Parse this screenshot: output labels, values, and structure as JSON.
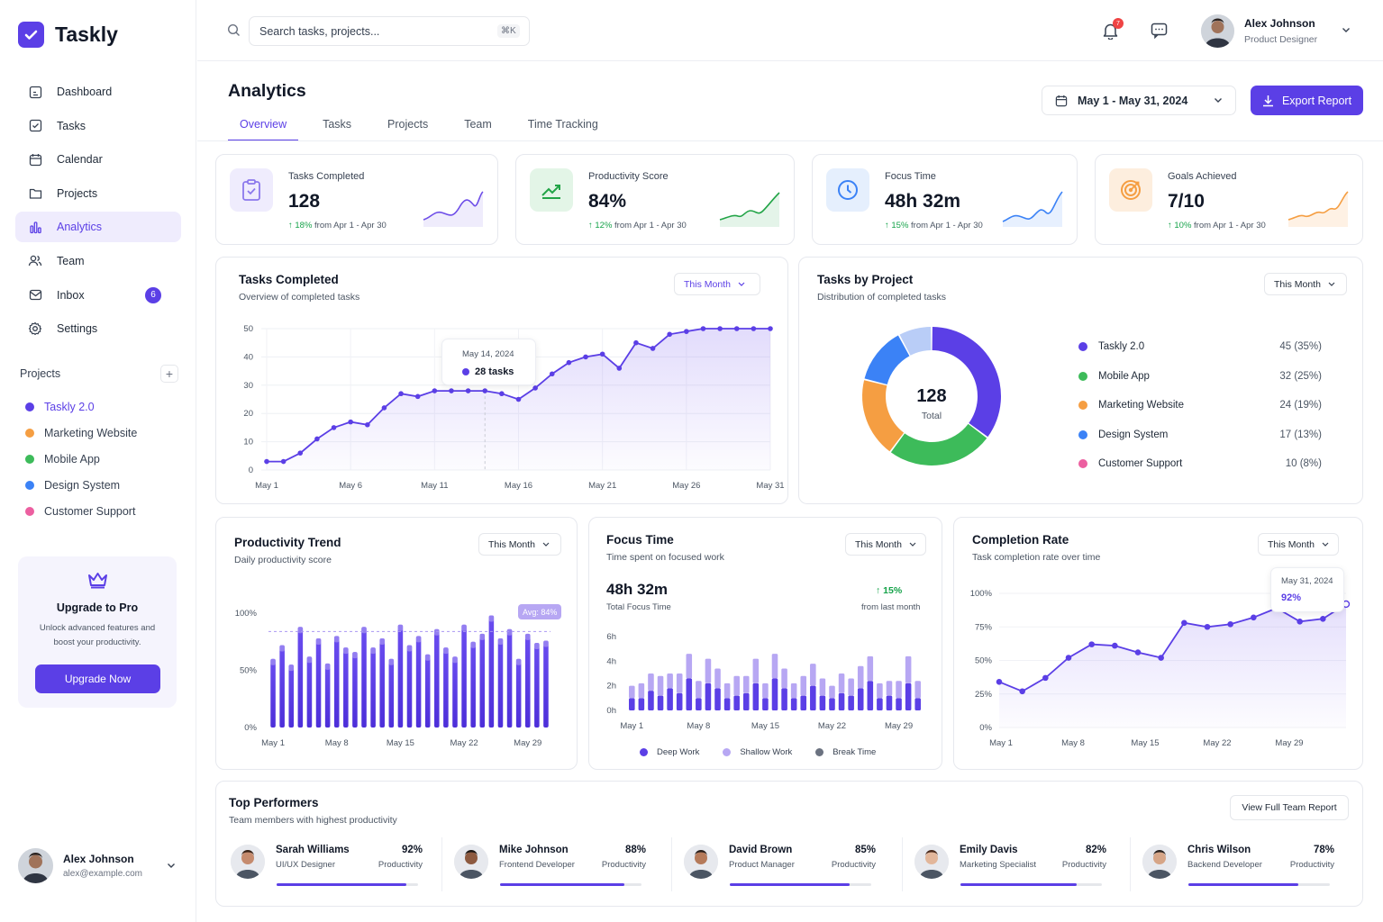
{
  "app": {
    "name": "Taskly"
  },
  "sidebar": {
    "nav": [
      {
        "label": "Dashboard",
        "icon": "dashboard-icon"
      },
      {
        "label": "Tasks",
        "icon": "checkbox-icon"
      },
      {
        "label": "Calendar",
        "icon": "calendar-icon"
      },
      {
        "label": "Projects",
        "icon": "folder-icon"
      },
      {
        "label": "Analytics",
        "icon": "bar-chart-icon",
        "active": true
      },
      {
        "label": "Team",
        "icon": "users-icon"
      },
      {
        "label": "Inbox",
        "icon": "inbox-icon",
        "badge": "6"
      },
      {
        "label": "Settings",
        "icon": "gear-icon"
      }
    ],
    "projects_heading": "Projects",
    "add_label": "+",
    "projects": [
      {
        "label": "Taskly 2.0",
        "color": "#5b3fe6",
        "active": true
      },
      {
        "label": "Marketing Website",
        "color": "#f59e42"
      },
      {
        "label": "Mobile App",
        "color": "#3dbb5a"
      },
      {
        "label": "Design System",
        "color": "#3b82f6"
      },
      {
        "label": "Customer Support",
        "color": "#ec5fa0"
      }
    ],
    "upgrade": {
      "title": "Upgrade to Pro",
      "text": "Unlock advanced features and boost your productivity.",
      "button": "Upgrade Now"
    },
    "user": {
      "name": "Alex Johnson",
      "email": "alex@example.com"
    }
  },
  "topbar": {
    "search_placeholder": "Search tasks, projects...",
    "shortcut": "⌘K",
    "notifications": "7",
    "user": {
      "name": "Alex Johnson",
      "role": "Product Designer"
    }
  },
  "header": {
    "title": "Analytics",
    "tabs": [
      "Overview",
      "Tasks",
      "Projects",
      "Team",
      "Time Tracking"
    ],
    "active_tab": "Overview",
    "date_range": "May 1 - May 31, 2024",
    "export_label": "Export Report"
  },
  "colors": {
    "accent": "#5b3fe6",
    "positive": "#16a34a",
    "orange": "#f59e42",
    "green": "#3dbb5a",
    "blue": "#3b82f6",
    "pink": "#ec5fa0"
  },
  "kpis": [
    {
      "label": "Tasks Completed",
      "value": "128",
      "delta": "18%",
      "delta_text": "from Apr 1 - Apr 30",
      "icon": "clipboard-check-icon",
      "color": "#8b78ec"
    },
    {
      "label": "Productivity Score",
      "value": "84%",
      "delta": "12%",
      "delta_text": "from Apr 1 - Apr 30",
      "icon": "trend-up-icon",
      "color": "#22a447"
    },
    {
      "label": "Focus Time",
      "value": "48h 32m",
      "delta": "15%",
      "delta_text": "from Apr 1 - Apr 30",
      "icon": "clock-icon",
      "color": "#3b82f6"
    },
    {
      "label": "Goals Achieved",
      "value": "7/10",
      "delta": "10%",
      "delta_text": "from Apr 1 - Apr 30",
      "icon": "target-icon",
      "color": "#f59e42"
    }
  ],
  "tasks_chart": {
    "title": "Tasks Completed",
    "subtitle": "Overview of completed tasks",
    "range": "This Month",
    "tooltip": {
      "date": "May 14, 2024",
      "value": "28 tasks"
    }
  },
  "projects_chart": {
    "title": "Tasks by Project",
    "subtitle": "Distribution of completed tasks",
    "range": "This Month",
    "center_value": "128",
    "center_label": "Total"
  },
  "productivity_chart": {
    "title": "Productivity Trend",
    "subtitle": "Daily productivity score",
    "range": "This Month",
    "avg_label": "Avg: 84%"
  },
  "focus_chart": {
    "title": "Focus Time",
    "subtitle": "Time spent on focused work",
    "range": "This Month",
    "total": "48h 32m",
    "total_label": "Total Focus Time",
    "delta": "15%",
    "delta_label": "from last month"
  },
  "completion_chart": {
    "title": "Completion Rate",
    "subtitle": "Task completion rate over time",
    "range": "This Month",
    "tooltip": {
      "date": "May 31, 2024",
      "value": "92%"
    }
  },
  "performers": {
    "title": "Top Performers",
    "subtitle": "Team members with highest productivity",
    "button": "View Full Team Report",
    "metric_label": "Productivity",
    "items": [
      {
        "name": "Sarah Williams",
        "role": "UI/UX Designer",
        "pct": "92%",
        "value": 0.92
      },
      {
        "name": "Mike Johnson",
        "role": "Frontend Developer",
        "pct": "88%",
        "value": 0.88
      },
      {
        "name": "David Brown",
        "role": "Product Manager",
        "pct": "85%",
        "value": 0.85
      },
      {
        "name": "Emily Davis",
        "role": "Marketing Specialist",
        "pct": "82%",
        "value": 0.82
      },
      {
        "name": "Chris Wilson",
        "role": "Backend Developer",
        "pct": "78%",
        "value": 0.78
      }
    ]
  },
  "chart_data": [
    {
      "type": "line",
      "title": "Tasks Completed",
      "x": [
        "May 1",
        "May 2",
        "May 3",
        "May 4",
        "May 5",
        "May 6",
        "May 7",
        "May 8",
        "May 9",
        "May 10",
        "May 11",
        "May 12",
        "May 13",
        "May 14",
        "May 15",
        "May 16",
        "May 17",
        "May 18",
        "May 19",
        "May 20",
        "May 21",
        "May 22",
        "May 23",
        "May 24",
        "May 25",
        "May 26",
        "May 27",
        "May 28",
        "May 29",
        "May 30",
        "May 31"
      ],
      "x_ticks": [
        "May 1",
        "May 6",
        "May 11",
        "May 16",
        "May 21",
        "May 26",
        "May 31"
      ],
      "y_ticks": [
        0,
        10,
        20,
        30,
        40,
        50
      ],
      "ylim": [
        0,
        50
      ],
      "values": [
        3,
        3,
        6,
        11,
        15,
        17,
        16,
        22,
        27,
        26,
        28,
        28,
        28,
        28,
        27,
        25,
        29,
        34,
        38,
        40,
        41,
        36,
        45,
        43,
        48,
        49,
        50,
        50,
        50,
        50,
        50
      ],
      "grid": true
    },
    {
      "type": "pie",
      "title": "Tasks by Project",
      "categories": [
        "Taskly 2.0",
        "Mobile App",
        "Marketing Website",
        "Design System",
        "Customer Support"
      ],
      "values": [
        45,
        32,
        24,
        17,
        10
      ],
      "labels": [
        "45 (35%)",
        "32 (25%)",
        "24 (19%)",
        "17 (13%)",
        "10 (8%)"
      ],
      "total": 128
    },
    {
      "type": "bar",
      "title": "Productivity Trend",
      "x_ticks": [
        "May 1",
        "May 8",
        "May 15",
        "May 22",
        "May 29"
      ],
      "y_ticks": [
        "0%",
        "50%",
        "100%"
      ],
      "ylim": [
        0,
        100
      ],
      "values": [
        60,
        72,
        55,
        88,
        62,
        78,
        56,
        80,
        70,
        66,
        88,
        70,
        78,
        60,
        90,
        72,
        80,
        64,
        86,
        70,
        62,
        90,
        75,
        82,
        98,
        78,
        86,
        60,
        82,
        74,
        76
      ],
      "average": 84
    },
    {
      "type": "bar",
      "title": "Focus Time",
      "x_ticks": [
        "May 1",
        "May 8",
        "May 15",
        "May 22",
        "May 29"
      ],
      "y_ticks": [
        "0h",
        "2h",
        "4h",
        "6h"
      ],
      "ylim": [
        0,
        6
      ],
      "series": [
        {
          "name": "Deep Work",
          "values": [
            1,
            1,
            1.6,
            1.2,
            1.8,
            1.4,
            2.6,
            1,
            2.2,
            1.8,
            1,
            1.2,
            1.4,
            2.2,
            1,
            2.6,
            1.8,
            1,
            1.2,
            2,
            1.2,
            1,
            1.4,
            1.2,
            1.8,
            2.4,
            1,
            1.2,
            1,
            2.2,
            1
          ]
        },
        {
          "name": "Shallow Work",
          "values": [
            1,
            1.2,
            1.4,
            1.6,
            1.2,
            1.6,
            2,
            1.4,
            2,
            1.6,
            1.2,
            1.6,
            1.4,
            2,
            1.2,
            2,
            1.6,
            1.2,
            1.6,
            1.8,
            1.4,
            1,
            1.6,
            1.4,
            1.8,
            2,
            1.2,
            1.2,
            1.4,
            2.2,
            1.4
          ]
        },
        {
          "name": "Break Time",
          "values": [
            0,
            0,
            0,
            0,
            0,
            0,
            0,
            0,
            0,
            0,
            0,
            0,
            0,
            0,
            0,
            0,
            0,
            0,
            0,
            0,
            0,
            0,
            0,
            0,
            0,
            0,
            0,
            0,
            0,
            0,
            0
          ]
        }
      ]
    },
    {
      "type": "line",
      "title": "Completion Rate",
      "x_ticks": [
        "May 1",
        "May 8",
        "May 15",
        "May 22",
        "May 29"
      ],
      "y_ticks": [
        "0%",
        "25%",
        "50%",
        "75%",
        "100%"
      ],
      "ylim": [
        0,
        100
      ],
      "values": [
        34,
        27,
        37,
        52,
        62,
        61,
        56,
        52,
        78,
        75,
        77,
        82,
        89,
        79,
        81,
        92
      ]
    }
  ]
}
